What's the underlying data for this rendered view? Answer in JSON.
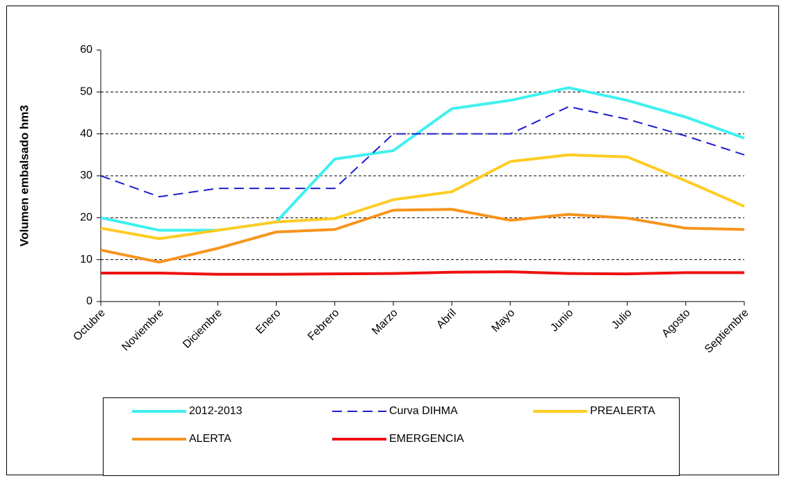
{
  "chart_data": {
    "type": "line",
    "y_label": "Volumen embalsado hm3",
    "categories": [
      "Octubre",
      "Noviembre",
      "Diciembre",
      "Enero",
      "Febrero",
      "Marzo",
      "Abril",
      "Mayo",
      "Junio",
      "Julio",
      "Agosto",
      "Septiembre"
    ],
    "series": [
      {
        "name": "2012-2013",
        "color": "#3ff0f0",
        "dashed": false,
        "values": [
          20,
          17,
          17,
          19,
          34,
          36,
          46,
          48,
          51,
          48,
          44,
          39
        ]
      },
      {
        "name": "Curva DIHMA",
        "color": "#1c1ccc",
        "dashed": true,
        "values": [
          30,
          25,
          27,
          27,
          27,
          40,
          40,
          40,
          46.5,
          43.5,
          39.5,
          35
        ]
      },
      {
        "name": "PREALERTA",
        "color": "#ffcc22",
        "dashed": false,
        "values": [
          17.5,
          15,
          17,
          19,
          19.8,
          24.3,
          26.2,
          33.4,
          35,
          34.5,
          28.8,
          22.7
        ]
      },
      {
        "name": "ALERTA",
        "color": "#f7941d",
        "dashed": false,
        "values": [
          12.3,
          9.4,
          12.7,
          16.6,
          17.2,
          21.8,
          22,
          19.4,
          20.8,
          19.9,
          17.5,
          17.2
        ]
      },
      {
        "name": "EMERGENCIA",
        "color": "#ee1111",
        "dashed": false,
        "values": [
          6.8,
          6.8,
          6.5,
          6.5,
          6.6,
          6.7,
          7,
          7.1,
          6.7,
          6.6,
          6.9,
          6.9
        ]
      }
    ],
    "ylim": [
      0,
      60
    ],
    "yticks": [
      0,
      10,
      20,
      30,
      40,
      50,
      60
    ],
    "grid": true,
    "legend": "bottom"
  }
}
